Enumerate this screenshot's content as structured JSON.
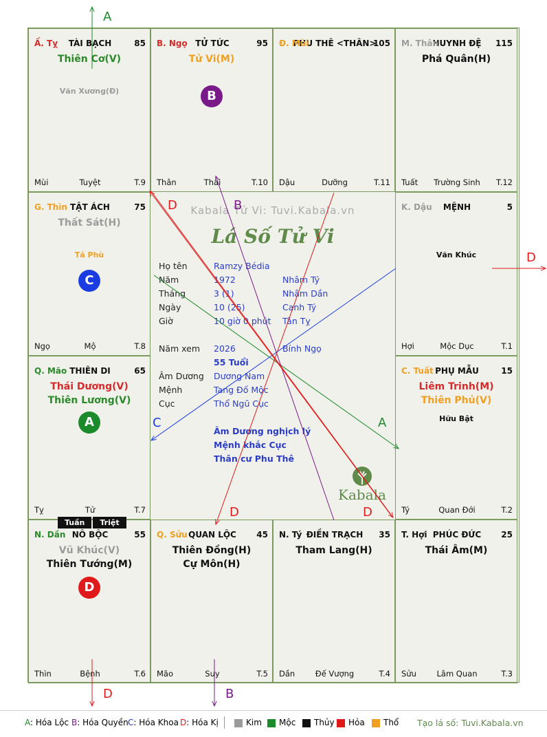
{
  "cells": [
    {
      "id": "c1",
      "can": "Ấ. Tỵ",
      "canColor": "#d42b2b",
      "palace": "TÀI BẠCH",
      "score": "85",
      "stars": [
        {
          "t": "Thiên Cơ(V)",
          "c": "#2a8a2a"
        }
      ],
      "minors": [
        {
          "t": "Văn Xương(Đ)",
          "c": "#9b9b9b"
        }
      ],
      "zhi": "Mùi",
      "stage": "Tuyệt",
      "tn": "T.9"
    },
    {
      "id": "c2",
      "can": "B. Ngọ",
      "canColor": "#d42b2b",
      "palace": "TỬ TỨC",
      "score": "95",
      "stars": [
        {
          "t": "Tử Vi(M)",
          "c": "#f0a020"
        }
      ],
      "minors": [],
      "zhi": "Thân",
      "stage": "Thai",
      "tn": "T.10"
    },
    {
      "id": "c3",
      "can": "Đ. Mùi",
      "canColor": "#f0a020",
      "palace": "PHU THÊ <THÂN>",
      "score": "105",
      "stars": [],
      "minors": [],
      "zhi": "Dậu",
      "stage": "Dưỡng",
      "tn": "T.11"
    },
    {
      "id": "c4",
      "can": "M. Thân",
      "canColor": "#9b9b9b",
      "palace": "HUYNH ĐỆ",
      "score": "115",
      "stars": [
        {
          "t": "Phá Quân(H)",
          "c": "#111111"
        }
      ],
      "minors": [],
      "zhi": "Tuất",
      "stage": "Trường Sinh",
      "tn": "T.12"
    },
    {
      "id": "c5",
      "can": "G. Thìn",
      "canColor": "#f0a020",
      "palace": "TẬT ÁCH",
      "score": "75",
      "stars": [
        {
          "t": "Thất Sát(H)",
          "c": "#9b9b9b"
        }
      ],
      "minors": [
        {
          "t": "Tả Phù",
          "c": "#f0a020"
        }
      ],
      "zhi": "Ngọ",
      "stage": "Mộ",
      "tn": "T.8"
    },
    {
      "id": "c6",
      "can": "K. Dậu",
      "canColor": "#9b9b9b",
      "palace": "MỆNH",
      "score": "5",
      "stars": [],
      "minors": [
        {
          "t": "Văn Khúc",
          "c": "#111111"
        }
      ],
      "zhi": "Hợi",
      "stage": "Mộc Dục",
      "tn": "T.1"
    },
    {
      "id": "c7",
      "can": "Q. Mão",
      "canColor": "#2a8a2a",
      "palace": "THIÊN DI",
      "score": "65",
      "stars": [
        {
          "t": "Thái Dương(V)",
          "c": "#d42b2b"
        },
        {
          "t": "Thiên Lương(V)",
          "c": "#2a8a2a"
        }
      ],
      "minors": [],
      "zhi": "Tỵ",
      "stage": "Tử",
      "tn": "T.7"
    },
    {
      "id": "c8",
      "can": "C. Tuất",
      "canColor": "#f0a020",
      "palace": "PHỤ MẪU",
      "score": "15",
      "stars": [
        {
          "t": "Liêm Trinh(M)",
          "c": "#d42b2b"
        },
        {
          "t": "Thiên Phủ(V)",
          "c": "#f0a020"
        }
      ],
      "minors": [
        {
          "t": "Hữu Bật",
          "c": "#111111"
        }
      ],
      "zhi": "Tý",
      "stage": "Quan Đới",
      "tn": "T.2"
    },
    {
      "id": "c9",
      "can": "N. Dần",
      "canColor": "#2a8a2a",
      "palace": "NÔ BỘC",
      "score": "55",
      "stars": [
        {
          "t": "Vũ Khúc(V)",
          "c": "#9b9b9b"
        },
        {
          "t": "Thiên Tướng(M)",
          "c": "#111111"
        }
      ],
      "minors": [],
      "zhi": "Thìn",
      "stage": "Bệnh",
      "tn": "T.6"
    },
    {
      "id": "c10",
      "can": "Q. Sửu",
      "canColor": "#f0a020",
      "palace": "QUAN LỘC",
      "score": "45",
      "stars": [
        {
          "t": "Thiên Đồng(H)",
          "c": "#111111"
        },
        {
          "t": "Cự Môn(H)",
          "c": "#111111"
        }
      ],
      "minors": [],
      "zhi": "Mão",
      "stage": "Suy",
      "tn": "T.5"
    },
    {
      "id": "c11",
      "can": "N. Tý",
      "canColor": "#111111",
      "palace": "ĐIỀN TRẠCH",
      "score": "35",
      "stars": [
        {
          "t": "Tham Lang(H)",
          "c": "#111111"
        }
      ],
      "minors": [],
      "zhi": "Dần",
      "stage": "Đế Vượng",
      "tn": "T.4"
    },
    {
      "id": "c12",
      "can": "T. Hợi",
      "canColor": "#111111",
      "palace": "PHÚC ĐỨC",
      "score": "25",
      "stars": [
        {
          "t": "Thái Âm(M)",
          "c": "#111111"
        }
      ],
      "minors": [],
      "zhi": "Sửu",
      "stage": "Lâm Quan",
      "tn": "T.3"
    }
  ],
  "circles": [
    {
      "cell": "c2",
      "letter": "B",
      "color": "#7a1a8a"
    },
    {
      "cell": "c5",
      "letter": "C",
      "color": "#1a3ce0"
    },
    {
      "cell": "c7",
      "letter": "A",
      "color": "#1a8a2a"
    },
    {
      "cell": "c9",
      "letter": "D",
      "color": "#e01a1a"
    }
  ],
  "tags": [
    "Tuần",
    "Triệt"
  ],
  "center": {
    "watermark": "Kabala Tử Vi: Tuvi.Kabala.vn",
    "logo": "Lá Số Tử Vi",
    "rows": [
      {
        "label": "Họ tên",
        "v1": "Ramzy Bédia",
        "v2": ""
      },
      {
        "label": "Năm",
        "v1": "1972",
        "v2": "Nhâm Tý"
      },
      {
        "label": "Tháng",
        "v1": "3  (1)",
        "v2": "Nhâm Dần"
      },
      {
        "label": "Ngày",
        "v1": "10  (25)",
        "v2": "Canh Tý"
      },
      {
        "label": "Giờ",
        "v1": "10 giờ 0 phút",
        "v2": "Tân Tỵ"
      },
      {
        "label": "",
        "v1": "",
        "v2": ""
      },
      {
        "label": "Năm xem",
        "v1": "2026",
        "v2": "Bính Ngọ"
      },
      {
        "label": "",
        "v1": "55 Tuổi",
        "v2": "",
        "bold": true
      },
      {
        "label": "Âm Dương",
        "v1": "Dương Nam",
        "v2": ""
      },
      {
        "label": "Mệnh",
        "v1": "Tang Đố Mộc",
        "v2": ""
      },
      {
        "label": "Cục",
        "v1": "Thổ Ngũ Cục",
        "v2": ""
      }
    ],
    "notes": [
      "Âm Dương nghịch lý",
      "Mệnh khắc Cục",
      "Thân cư Phu Thê"
    ],
    "brand": "Kabala"
  },
  "arrow_labels": {
    "a": "A",
    "b": "B",
    "c": "C",
    "d": "D"
  },
  "legend": {
    "items": [
      {
        "key": "A",
        "text": ": Hóa Lộc",
        "color": "#1a8a2a"
      },
      {
        "key": "B",
        "text": ": Hóa Quyền",
        "color": "#7a1a8a"
      },
      {
        "key": "C",
        "text": ": Hóa Khoa",
        "color": "#1a3ce0"
      },
      {
        "key": "D",
        "text": ": Hóa Kị",
        "color": "#e01a1a"
      }
    ],
    "elements": [
      {
        "name": "Kim",
        "color": "#9b9b9b"
      },
      {
        "name": "Mộc",
        "color": "#1a8a2a"
      },
      {
        "name": "Thủy",
        "color": "#111111"
      },
      {
        "name": "Hỏa",
        "color": "#e01a1a"
      },
      {
        "name": "Thổ",
        "color": "#f0a020"
      }
    ],
    "site": "Tạo lá số: Tuvi.Kabala.vn"
  }
}
